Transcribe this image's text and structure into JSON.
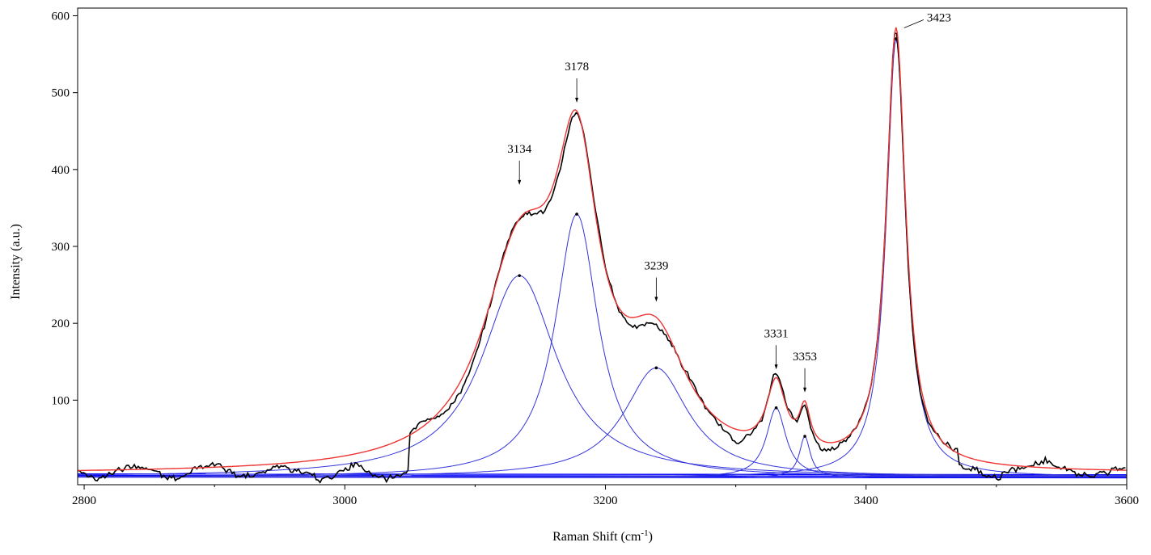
{
  "chart_data": {
    "type": "line",
    "title": "",
    "xlabel": "Raman Shift (cm",
    "xlabel_sup": "-1",
    "xlabel_close": ")",
    "ylabel": "Intensity (a.u.)",
    "xlim": [
      2795,
      3600
    ],
    "ylim": [
      -10,
      610
    ],
    "x_ticks": [
      2800,
      3000,
      3200,
      3400,
      3600
    ],
    "y_ticks": [
      100,
      200,
      300,
      400,
      500,
      600
    ],
    "grid": false,
    "legend": "none",
    "colors": {
      "measured": "#000000",
      "fit": "#ee3333",
      "components": "#3333dd",
      "baseline": "#0000ff"
    },
    "components": [
      {
        "center": 3134,
        "amplitude": 262,
        "fwhm": 70
      },
      {
        "center": 3178,
        "amplitude": 342,
        "fwhm": 40
      },
      {
        "center": 3239,
        "amplitude": 142,
        "fwhm": 60
      },
      {
        "center": 3331,
        "amplitude": 90,
        "fwhm": 18
      },
      {
        "center": 3353,
        "amplitude": 53,
        "fwhm": 10
      },
      {
        "center": 3423,
        "amplitude": 570,
        "fwhm": 18
      }
    ],
    "peak_labels": [
      {
        "text": "3134",
        "x": 3134,
        "y": 380
      },
      {
        "text": "3178",
        "x": 3178,
        "y": 487
      },
      {
        "text": "3239",
        "x": 3239,
        "y": 228
      },
      {
        "text": "3331",
        "x": 3331,
        "y": 140
      },
      {
        "text": "3353",
        "x": 3353,
        "y": 110
      },
      {
        "text": "3423",
        "x": 3423,
        "y": 580
      }
    ],
    "series": [
      {
        "name": "",
        "role": "measured"
      },
      {
        "name": "",
        "role": "fit"
      }
    ]
  }
}
